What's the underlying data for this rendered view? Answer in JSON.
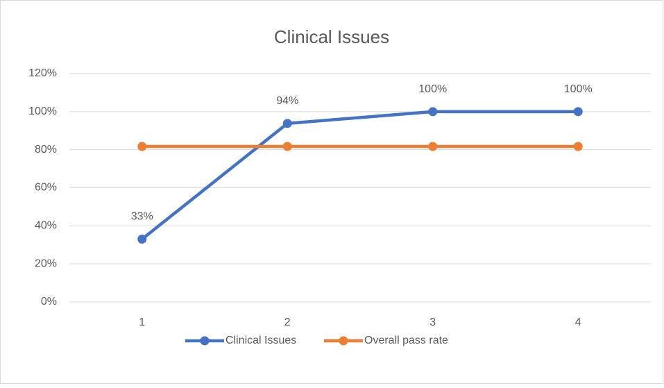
{
  "chart_data": {
    "type": "line",
    "title": "Clinical Issues",
    "categories": [
      "1",
      "2",
      "3",
      "4"
    ],
    "series": [
      {
        "name": "Clinical Issues",
        "color": "#4472c4",
        "values": [
          33,
          93.8,
          100,
          100
        ],
        "value_labels": [
          "33%",
          "94%",
          "100%",
          "100%"
        ]
      },
      {
        "name": "Overall pass rate",
        "color": "#ed7d31",
        "values": [
          81.7,
          81.7,
          81.7,
          81.7
        ]
      }
    ],
    "ylim": [
      0,
      120
    ],
    "yticks": [
      {
        "value": 0,
        "label": "0%"
      },
      {
        "value": 20,
        "label": "20%"
      },
      {
        "value": 40,
        "label": "40%"
      },
      {
        "value": 60,
        "label": "60%"
      },
      {
        "value": 80,
        "label": "80%"
      },
      {
        "value": 100,
        "label": "100%"
      },
      {
        "value": 120,
        "label": "120%"
      }
    ],
    "grid": true,
    "legend": "bottom"
  }
}
